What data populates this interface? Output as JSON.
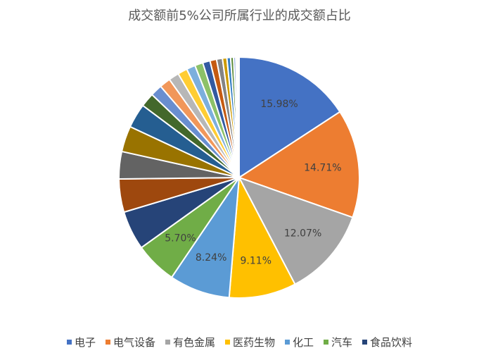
{
  "chart_data": {
    "type": "pie",
    "title": "成交额前5%公司所属行业的成交额占比",
    "slices": [
      {
        "name": "电子",
        "value": 15.98,
        "label": "15.98%",
        "color": "#4472C4"
      },
      {
        "name": "电气设备",
        "value": 14.71,
        "label": "14.71%",
        "color": "#ED7D31"
      },
      {
        "name": "有色金属",
        "value": 12.07,
        "label": "12.07%",
        "color": "#A5A5A5"
      },
      {
        "name": "医药生物",
        "value": 9.11,
        "label": "9.11%",
        "color": "#FFC000"
      },
      {
        "name": "化工",
        "value": 8.24,
        "label": "8.24%",
        "color": "#5B9BD5"
      },
      {
        "name": "汽车",
        "value": 5.7,
        "label": "5.70%",
        "color": "#70AD47"
      },
      {
        "name": "食品饮料",
        "value": 5.3,
        "label": "",
        "color": "#264478"
      },
      {
        "name": "",
        "value": 4.5,
        "label": "",
        "color": "#9E480E"
      },
      {
        "name": "",
        "value": 3.7,
        "label": "",
        "color": "#636363"
      },
      {
        "name": "",
        "value": 3.5,
        "label": "",
        "color": "#997300"
      },
      {
        "name": "",
        "value": 3.3,
        "label": "",
        "color": "#255E91"
      },
      {
        "name": "",
        "value": 1.9,
        "label": "",
        "color": "#43682B"
      },
      {
        "name": "",
        "value": 1.6,
        "label": "",
        "color": "#698ED0"
      },
      {
        "name": "",
        "value": 1.5,
        "label": "",
        "color": "#F1975A"
      },
      {
        "name": "",
        "value": 1.4,
        "label": "",
        "color": "#B7B7B7"
      },
      {
        "name": "",
        "value": 1.3,
        "label": "",
        "color": "#FFCD33"
      },
      {
        "name": "",
        "value": 1.2,
        "label": "",
        "color": "#7CAFDD"
      },
      {
        "name": "",
        "value": 1.1,
        "label": "",
        "color": "#8CC168"
      },
      {
        "name": "",
        "value": 1.0,
        "label": "",
        "color": "#335AA1"
      },
      {
        "name": "",
        "value": 0.9,
        "label": "",
        "color": "#C55A11"
      },
      {
        "name": "",
        "value": 0.8,
        "label": "",
        "color": "#848484"
      },
      {
        "name": "",
        "value": 0.6,
        "label": "",
        "color": "#CC9A00"
      },
      {
        "name": "",
        "value": 0.5,
        "label": "",
        "color": "#327DC2"
      },
      {
        "name": "",
        "value": 0.4,
        "label": "",
        "color": "#5A8A39"
      },
      {
        "name": "",
        "value": 0.3,
        "label": "",
        "color": "#8FAADC"
      },
      {
        "name": "",
        "value": 0.2,
        "label": "",
        "color": "#F4B183"
      },
      {
        "name": "",
        "value": 0.15,
        "label": "",
        "color": "#C9C9C9"
      },
      {
        "name": "",
        "value": 0.1,
        "label": "",
        "color": "#FFD966"
      }
    ],
    "legend": {
      "position": "bottom",
      "items": [
        {
          "name": "电子",
          "color": "#4472C4"
        },
        {
          "name": "电气设备",
          "color": "#ED7D31"
        },
        {
          "name": "有色金属",
          "color": "#A5A5A5"
        },
        {
          "name": "医药生物",
          "color": "#FFC000"
        },
        {
          "name": "化工",
          "color": "#5B9BD5"
        },
        {
          "name": "汽车",
          "color": "#70AD47"
        },
        {
          "name": "食品饮料",
          "color": "#264478"
        }
      ]
    }
  }
}
